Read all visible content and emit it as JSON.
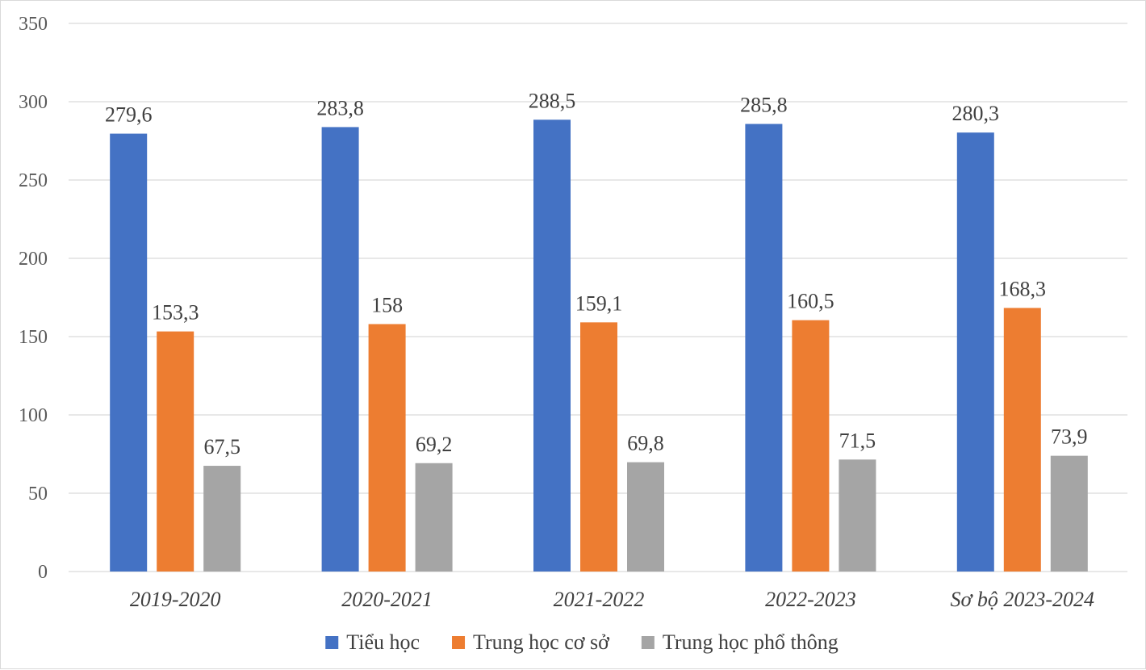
{
  "chart_data": {
    "type": "bar",
    "title": "",
    "xlabel": "",
    "ylabel": "",
    "ylim": [
      0,
      350
    ],
    "yticks": [
      "0",
      "50",
      "100",
      "150",
      "200",
      "250",
      "300",
      "350"
    ],
    "grid": true,
    "legend_position": "bottom",
    "categories": [
      "2019-2020",
      "2020-2021",
      "2021-2022",
      "2022-2023",
      "Sơ bộ 2023-2024"
    ],
    "series": [
      {
        "name": "Tiểu học",
        "color": "#4472C4",
        "values": [
          279.6,
          283.8,
          288.5,
          285.8,
          280.3
        ],
        "labels": [
          "279,6",
          "283,8",
          "288,5",
          "285,8",
          "280,3"
        ]
      },
      {
        "name": "Trung học cơ sở",
        "color": "#ED7D31",
        "values": [
          153.3,
          158,
          159.1,
          160.5,
          168.3
        ],
        "labels": [
          "153,3",
          "158",
          "159,1",
          "160,5",
          "168,3"
        ]
      },
      {
        "name": "Trung học phổ thông",
        "color": "#A5A5A5",
        "values": [
          67.5,
          69.2,
          69.8,
          71.5,
          73.9
        ],
        "labels": [
          "67,5",
          "69,2",
          "69,8",
          "71,5",
          "73,9"
        ]
      }
    ]
  }
}
